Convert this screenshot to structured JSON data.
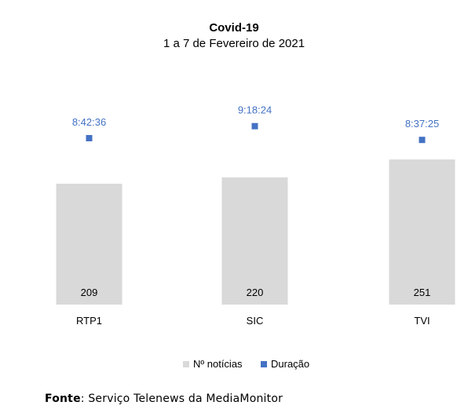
{
  "chart_data": {
    "type": "bar",
    "title": "Covid-19",
    "subtitle": "1 a 7 de Fevereiro de 2021",
    "categories": [
      "RTP1",
      "SIC",
      "TVI"
    ],
    "series": [
      {
        "name": "Nº notícias",
        "type": "bar",
        "color": "#d9d9d9",
        "values": [
          209,
          220,
          251
        ],
        "labels": [
          "209",
          "220",
          "251"
        ]
      },
      {
        "name": "Duração",
        "type": "scatter",
        "color": "#4472c4",
        "values_seconds": [
          31356,
          33504,
          31045
        ],
        "labels": [
          "8:42:36",
          "9:18:24",
          "8:37:25"
        ]
      }
    ],
    "legend_position": "bottom",
    "grid": false
  },
  "source": {
    "label": "Fonte",
    "text": ": Serviço Telenews da MediaMonitor"
  }
}
